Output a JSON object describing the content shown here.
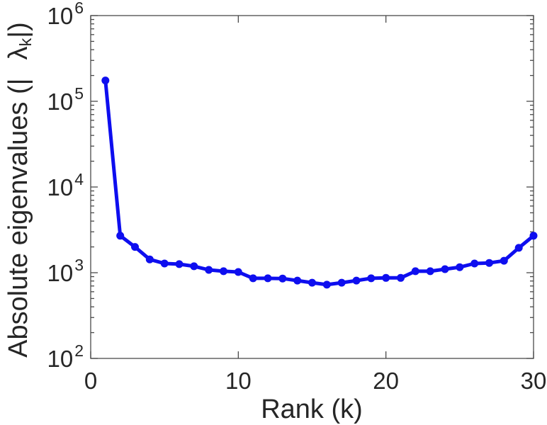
{
  "chart_data": {
    "type": "line",
    "title": "",
    "xlabel": "Rank (k)",
    "ylabel": "Absolute eigenvalues (| λ_k |)",
    "x_axis": {
      "min": 0,
      "max": 30,
      "ticks": [
        0,
        10,
        20,
        30
      ],
      "scale": "linear"
    },
    "y_axis": {
      "min": 100,
      "max": 1000000,
      "scale": "log",
      "tick_exponents": [
        2,
        3,
        4,
        5,
        6
      ],
      "minor_tick_multiples": [
        2,
        3,
        4,
        5,
        6,
        7,
        8,
        9
      ]
    },
    "grid": false,
    "legend": "none",
    "series": [
      {
        "name": "absolute-eigenvalues",
        "marker": "dot",
        "x": [
          1,
          2,
          3,
          4,
          5,
          6,
          7,
          8,
          9,
          10,
          11,
          12,
          13,
          14,
          15,
          16,
          17,
          18,
          19,
          20,
          21,
          22,
          23,
          24,
          25,
          26,
          27,
          28,
          29,
          30
        ],
        "values": [
          175000,
          2700,
          2000,
          1430,
          1280,
          1260,
          1190,
          1080,
          1040,
          1020,
          860,
          860,
          855,
          810,
          765,
          725,
          765,
          810,
          860,
          870,
          870,
          1040,
          1040,
          1100,
          1160,
          1280,
          1300,
          1380,
          1950,
          2700
        ]
      }
    ],
    "colors": {
      "line": "#0e0eef",
      "axis": "#4a4a4a",
      "text": "#262626"
    }
  },
  "labels": {
    "xlabel": "Rank (k)",
    "ylabel_prefix": "Absolute eigenvalues (|",
    "ylabel_symbol": "λ",
    "ylabel_sub": "k",
    "ylabel_suffix": "|)",
    "y_tick_base": "10"
  }
}
